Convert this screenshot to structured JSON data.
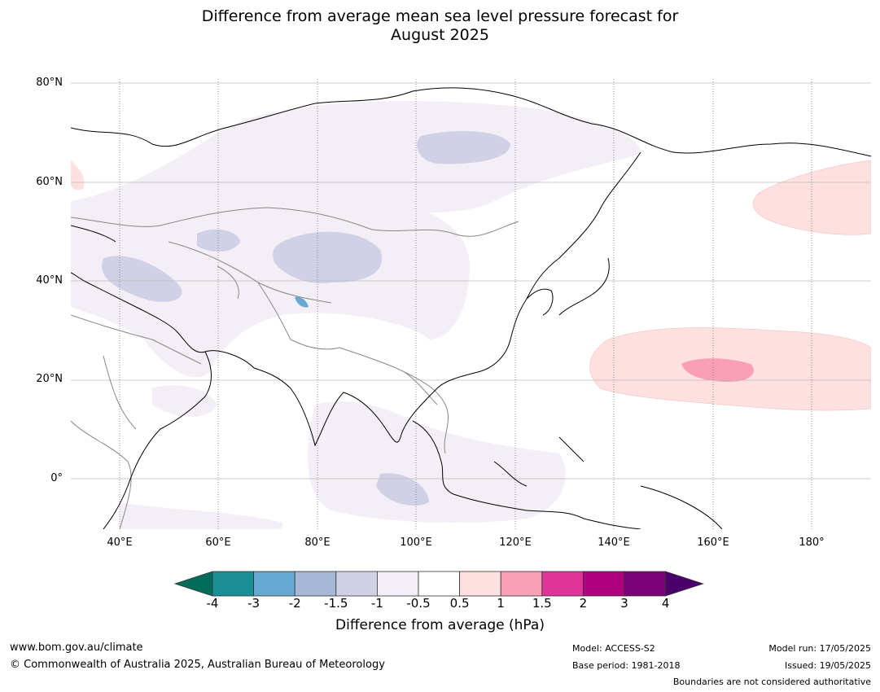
{
  "title_line1": "Difference from average mean sea level pressure forecast for",
  "title_line2": "August 2025",
  "lat_labels": [
    "80°N",
    "60°N",
    "40°N",
    "20°N",
    "0°"
  ],
  "lon_labels": [
    "40°E",
    "60°E",
    "80°E",
    "100°E",
    "120°E",
    "140°E",
    "160°E",
    "180°"
  ],
  "colorbar": {
    "ticks": [
      "-4",
      "-3",
      "-2",
      "-1.5",
      "-1",
      "-0.5",
      "0.5",
      "1",
      "1.5",
      "2",
      "3",
      "4"
    ],
    "colors": [
      "#1a8f96",
      "#66a9d1",
      "#a6b8d6",
      "#d0d1e6",
      "#f4eef6",
      "#ffffff",
      "#fde0df",
      "#f99fb7",
      "#dd3497",
      "#ae017e",
      "#7a0177"
    ],
    "low_extend_color": "#006d5b",
    "high_extend_color": "#49006a",
    "label": "Difference from average (hPa)"
  },
  "footer": {
    "website": "www.bom.gov.au/climate",
    "copyright": "© Commonwealth of Australia 2025, Australian Bureau of Meteorology",
    "model": "Model: ACCESS-S2",
    "base_period": "Base period: 1981-2018",
    "model_run": "Model run: 17/05/2025",
    "issued": "Issued: 19/05/2025",
    "disclaimer": "Boundaries are not considered authoritative"
  }
}
